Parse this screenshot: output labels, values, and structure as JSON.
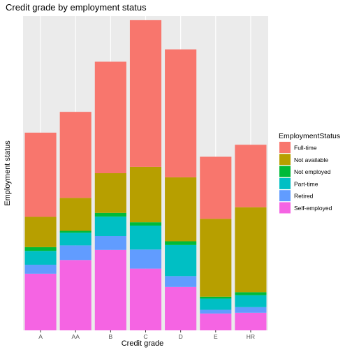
{
  "chart_data": {
    "type": "bar",
    "stacked": true,
    "title": "Credit grade by employment status",
    "xlabel": "Credit grade",
    "ylabel": "Employment status",
    "categories": [
      "A",
      "AA",
      "B",
      "C",
      "D",
      "E",
      "HR"
    ],
    "ylim": [
      0,
      4200
    ],
    "grid": true,
    "legend": {
      "title": "EmploymentStatus",
      "position": "right"
    },
    "series": [
      {
        "name": "Self-employed",
        "color": "#F564E3",
        "values": [
          757,
          940,
          1075,
          825,
          580,
          225,
          235
        ]
      },
      {
        "name": "Retired",
        "color": "#619CFF",
        "values": [
          120,
          195,
          185,
          255,
          145,
          50,
          75
        ]
      },
      {
        "name": "Part-time",
        "color": "#00BFC4",
        "values": [
          185,
          170,
          260,
          320,
          415,
          150,
          160
        ]
      },
      {
        "name": "Not employed",
        "color": "#00BA38",
        "values": [
          50,
          25,
          50,
          45,
          50,
          25,
          40
        ]
      },
      {
        "name": "Not available",
        "color": "#B79F00",
        "values": [
          405,
          440,
          530,
          740,
          855,
          1040,
          1135
        ]
      },
      {
        "name": "Full-time",
        "color": "#F8766D",
        "values": [
          1125,
          1150,
          1490,
          1960,
          1710,
          830,
          835
        ]
      }
    ]
  }
}
